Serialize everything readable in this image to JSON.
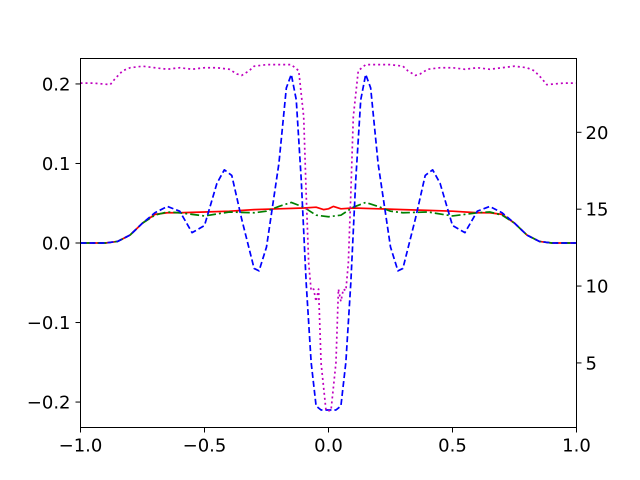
{
  "chart_data": {
    "type": "line",
    "title": "",
    "xlabel": "",
    "ylabel": "",
    "y2label": "",
    "grid": false,
    "legend": "none",
    "xlim": [
      -1.0,
      1.0
    ],
    "ylim": [
      -0.232,
      0.232
    ],
    "y2lim": [
      0.8,
      24.8
    ],
    "x_ticks": [
      {
        "value": -1.0,
        "label": "−1.0"
      },
      {
        "value": -0.5,
        "label": "−0.5"
      },
      {
        "value": 0.0,
        "label": "0.0"
      },
      {
        "value": 0.5,
        "label": "0.5"
      },
      {
        "value": 1.0,
        "label": "1.0"
      }
    ],
    "y_ticks": [
      {
        "value": -0.2,
        "label": "−0.2"
      },
      {
        "value": -0.1,
        "label": "−0.1"
      },
      {
        "value": 0.0,
        "label": "0.0"
      },
      {
        "value": 0.1,
        "label": "0.1"
      },
      {
        "value": 0.2,
        "label": "0.2"
      }
    ],
    "y2_ticks": [
      {
        "value": 5,
        "label": "5"
      },
      {
        "value": 10,
        "label": "10"
      },
      {
        "value": 15,
        "label": "15"
      },
      {
        "value": 20,
        "label": "20"
      }
    ],
    "series": [
      {
        "color": "#ff0000",
        "dash": "",
        "axis": "left",
        "x": [
          -1.0,
          -0.9,
          -0.85,
          -0.8,
          -0.75,
          -0.7,
          -0.65,
          -0.6,
          -0.5,
          -0.4,
          -0.3,
          -0.2,
          -0.1,
          -0.05,
          -0.02,
          0.0,
          0.02,
          0.05,
          0.1,
          0.2,
          0.3,
          0.4,
          0.5,
          0.6,
          0.65,
          0.7,
          0.75,
          0.8,
          0.85,
          0.9,
          1.0
        ],
        "y": [
          0.0,
          0.0,
          0.002,
          0.01,
          0.025,
          0.036,
          0.038,
          0.038,
          0.039,
          0.04,
          0.042,
          0.043,
          0.044,
          0.045,
          0.042,
          0.043,
          0.046,
          0.043,
          0.044,
          0.043,
          0.042,
          0.041,
          0.04,
          0.038,
          0.038,
          0.036,
          0.025,
          0.01,
          0.002,
          0.0,
          0.0
        ]
      },
      {
        "color": "#008000",
        "dash": "9 3 2 3",
        "axis": "left",
        "x": [
          -1.0,
          -0.9,
          -0.85,
          -0.8,
          -0.75,
          -0.7,
          -0.65,
          -0.6,
          -0.55,
          -0.5,
          -0.4,
          -0.3,
          -0.25,
          -0.2,
          -0.15,
          -0.1,
          -0.05,
          0.0,
          0.05,
          0.1,
          0.15,
          0.2,
          0.25,
          0.3,
          0.4,
          0.5,
          0.55,
          0.6,
          0.65,
          0.7,
          0.75,
          0.8,
          0.85,
          0.9,
          1.0
        ],
        "y": [
          0.0,
          0.0,
          0.002,
          0.01,
          0.025,
          0.035,
          0.039,
          0.038,
          0.036,
          0.034,
          0.039,
          0.038,
          0.04,
          0.046,
          0.051,
          0.045,
          0.035,
          0.033,
          0.035,
          0.045,
          0.051,
          0.046,
          0.04,
          0.038,
          0.039,
          0.034,
          0.036,
          0.038,
          0.039,
          0.035,
          0.025,
          0.01,
          0.002,
          0.0,
          0.0
        ]
      },
      {
        "color": "#0000ff",
        "dash": "6 3",
        "axis": "left",
        "x": [
          -1.0,
          -0.9,
          -0.85,
          -0.8,
          -0.75,
          -0.7,
          -0.65,
          -0.6,
          -0.55,
          -0.5,
          -0.45,
          -0.42,
          -0.39,
          -0.35,
          -0.3,
          -0.28,
          -0.25,
          -0.2,
          -0.17,
          -0.15,
          -0.13,
          -0.11,
          -0.09,
          -0.07,
          -0.05,
          -0.03,
          0.0,
          0.03,
          0.05,
          0.07,
          0.09,
          0.11,
          0.13,
          0.15,
          0.17,
          0.2,
          0.25,
          0.28,
          0.3,
          0.35,
          0.39,
          0.42,
          0.45,
          0.5,
          0.55,
          0.6,
          0.65,
          0.7,
          0.75,
          0.8,
          0.85,
          0.9,
          1.0
        ],
        "y": [
          0.0,
          0.0,
          0.002,
          0.01,
          0.025,
          0.038,
          0.046,
          0.04,
          0.013,
          0.022,
          0.075,
          0.092,
          0.085,
          0.03,
          -0.032,
          -0.035,
          -0.005,
          0.1,
          0.195,
          0.212,
          0.18,
          0.08,
          -0.05,
          -0.15,
          -0.205,
          -0.21,
          -0.21,
          -0.21,
          -0.205,
          -0.15,
          -0.05,
          0.08,
          0.18,
          0.212,
          0.195,
          0.1,
          -0.005,
          -0.035,
          -0.032,
          0.03,
          0.085,
          0.092,
          0.075,
          0.022,
          0.013,
          0.04,
          0.046,
          0.038,
          0.025,
          0.01,
          0.002,
          0.0,
          0.0
        ]
      },
      {
        "color": "#bf00bf",
        "dash": "2 3",
        "axis": "right",
        "x": [
          -1.0,
          -0.95,
          -0.88,
          -0.86,
          -0.83,
          -0.8,
          -0.75,
          -0.7,
          -0.65,
          -0.6,
          -0.55,
          -0.5,
          -0.45,
          -0.4,
          -0.37,
          -0.35,
          -0.32,
          -0.3,
          -0.25,
          -0.2,
          -0.15,
          -0.12,
          -0.1,
          -0.09,
          -0.08,
          -0.07,
          -0.06,
          -0.05,
          -0.04,
          -0.03,
          -0.01,
          0.0,
          0.01,
          0.03,
          0.04,
          0.05,
          0.06,
          0.07,
          0.08,
          0.09,
          0.1,
          0.12,
          0.15,
          0.2,
          0.25,
          0.3,
          0.32,
          0.35,
          0.37,
          0.4,
          0.45,
          0.5,
          0.55,
          0.6,
          0.65,
          0.7,
          0.75,
          0.8,
          0.83,
          0.86,
          0.88,
          0.95,
          1.0
        ],
        "y": [
          23.2,
          23.2,
          23.1,
          23.5,
          24.0,
          24.2,
          24.3,
          24.2,
          24.1,
          24.2,
          24.1,
          24.2,
          24.2,
          24.1,
          23.8,
          23.7,
          24.0,
          24.3,
          24.4,
          24.4,
          24.4,
          24.0,
          21.0,
          16.0,
          11.5,
          9.7,
          9.8,
          9.0,
          9.8,
          5.0,
          1.9,
          1.9,
          1.9,
          5.0,
          9.8,
          9.0,
          9.8,
          9.7,
          11.5,
          16.0,
          21.0,
          24.0,
          24.4,
          24.4,
          24.4,
          24.3,
          24.0,
          23.7,
          23.8,
          24.1,
          24.2,
          24.2,
          24.1,
          24.2,
          24.1,
          24.2,
          24.3,
          24.2,
          24.0,
          23.5,
          23.1,
          23.2,
          23.2
        ]
      }
    ]
  }
}
